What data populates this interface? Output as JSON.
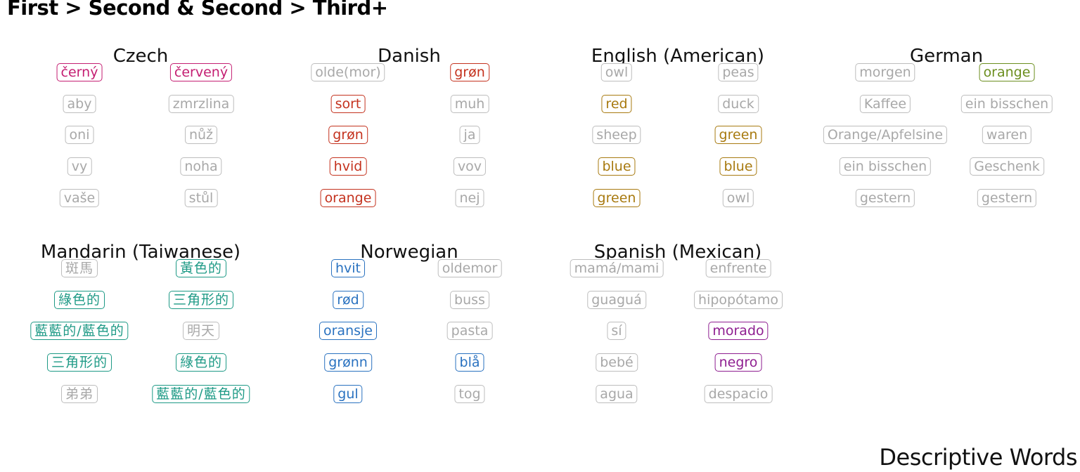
{
  "title": "First > Second & Second > Third+",
  "caption": "Descriptive Words",
  "colors": {
    "muted": "#a8a8a8",
    "muted_border": "#bdbdbd",
    "Czech": "#c41e72",
    "Danish": "#c4321e",
    "English (American)": "#a87a10",
    "German": "#6b8e1e",
    "Mandarin (Taiwanese)": "#1e9a86",
    "Norwegian": "#2a72c0",
    "Spanish (Mexican)": "#8e1e90"
  },
  "chart_data": {
    "type": "table",
    "columns": [
      "First > Second",
      "Second > Third+"
    ],
    "panels": [
      {
        "language": "Czech",
        "rows": [
          [
            {
              "word": "černý",
              "highlight": true
            },
            {
              "word": "červený",
              "highlight": true
            }
          ],
          [
            {
              "word": "aby",
              "highlight": false
            },
            {
              "word": "zmrzlina",
              "highlight": false
            }
          ],
          [
            {
              "word": "oni",
              "highlight": false
            },
            {
              "word": "nůž",
              "highlight": false
            }
          ],
          [
            {
              "word": "vy",
              "highlight": false
            },
            {
              "word": "noha",
              "highlight": false
            }
          ],
          [
            {
              "word": "vaše",
              "highlight": false
            },
            {
              "word": "stůl",
              "highlight": false
            }
          ]
        ]
      },
      {
        "language": "Danish",
        "rows": [
          [
            {
              "word": "olde(mor)",
              "highlight": false
            },
            {
              "word": "grøn",
              "highlight": true
            }
          ],
          [
            {
              "word": "sort",
              "highlight": true
            },
            {
              "word": "muh",
              "highlight": false
            }
          ],
          [
            {
              "word": "grøn",
              "highlight": true
            },
            {
              "word": "ja",
              "highlight": false
            }
          ],
          [
            {
              "word": "hvid",
              "highlight": true
            },
            {
              "word": "vov",
              "highlight": false
            }
          ],
          [
            {
              "word": "orange",
              "highlight": true
            },
            {
              "word": "nej",
              "highlight": false
            }
          ]
        ]
      },
      {
        "language": "English (American)",
        "rows": [
          [
            {
              "word": "owl",
              "highlight": false
            },
            {
              "word": "peas",
              "highlight": false
            }
          ],
          [
            {
              "word": "red",
              "highlight": true
            },
            {
              "word": "duck",
              "highlight": false
            }
          ],
          [
            {
              "word": "sheep",
              "highlight": false
            },
            {
              "word": "green",
              "highlight": true
            }
          ],
          [
            {
              "word": "blue",
              "highlight": true
            },
            {
              "word": "blue",
              "highlight": true
            }
          ],
          [
            {
              "word": "green",
              "highlight": true
            },
            {
              "word": "owl",
              "highlight": false
            }
          ]
        ]
      },
      {
        "language": "German",
        "rows": [
          [
            {
              "word": "morgen",
              "highlight": false
            },
            {
              "word": "orange",
              "highlight": true
            }
          ],
          [
            {
              "word": "Kaffee",
              "highlight": false
            },
            {
              "word": "ein bisschen",
              "highlight": false
            }
          ],
          [
            {
              "word": "Orange/Apfelsine",
              "highlight": false
            },
            {
              "word": "waren",
              "highlight": false
            }
          ],
          [
            {
              "word": "ein bisschen",
              "highlight": false
            },
            {
              "word": "Geschenk",
              "highlight": false
            }
          ],
          [
            {
              "word": "gestern",
              "highlight": false
            },
            {
              "word": "gestern",
              "highlight": false
            }
          ]
        ]
      },
      {
        "language": "Mandarin (Taiwanese)",
        "rows": [
          [
            {
              "word": "斑馬",
              "highlight": false
            },
            {
              "word": "黃色的",
              "highlight": true
            }
          ],
          [
            {
              "word": "綠色的",
              "highlight": true
            },
            {
              "word": "三角形的",
              "highlight": true
            }
          ],
          [
            {
              "word": "藍藍的/藍色的",
              "highlight": true
            },
            {
              "word": "明天",
              "highlight": false
            }
          ],
          [
            {
              "word": "三角形的",
              "highlight": true
            },
            {
              "word": "綠色的",
              "highlight": true
            }
          ],
          [
            {
              "word": "弟弟",
              "highlight": false
            },
            {
              "word": "藍藍的/藍色的",
              "highlight": true
            }
          ]
        ]
      },
      {
        "language": "Norwegian",
        "rows": [
          [
            {
              "word": "hvit",
              "highlight": true
            },
            {
              "word": "oldemor",
              "highlight": false
            }
          ],
          [
            {
              "word": "rød",
              "highlight": true
            },
            {
              "word": "buss",
              "highlight": false
            }
          ],
          [
            {
              "word": "oransje",
              "highlight": true
            },
            {
              "word": "pasta",
              "highlight": false
            }
          ],
          [
            {
              "word": "grønn",
              "highlight": true
            },
            {
              "word": "blå",
              "highlight": true
            }
          ],
          [
            {
              "word": "gul",
              "highlight": true
            },
            {
              "word": "tog",
              "highlight": false
            }
          ]
        ]
      },
      {
        "language": "Spanish (Mexican)",
        "rows": [
          [
            {
              "word": "mamá/mami",
              "highlight": false
            },
            {
              "word": "enfrente",
              "highlight": false
            }
          ],
          [
            {
              "word": "guaguá",
              "highlight": false
            },
            {
              "word": "hipopótamo",
              "highlight": false
            }
          ],
          [
            {
              "word": "sí",
              "highlight": false
            },
            {
              "word": "morado",
              "highlight": true
            }
          ],
          [
            {
              "word": "bebé",
              "highlight": false
            },
            {
              "word": "negro",
              "highlight": true
            }
          ],
          [
            {
              "word": "agua",
              "highlight": false
            },
            {
              "word": "despacio",
              "highlight": false
            }
          ]
        ]
      }
    ]
  }
}
